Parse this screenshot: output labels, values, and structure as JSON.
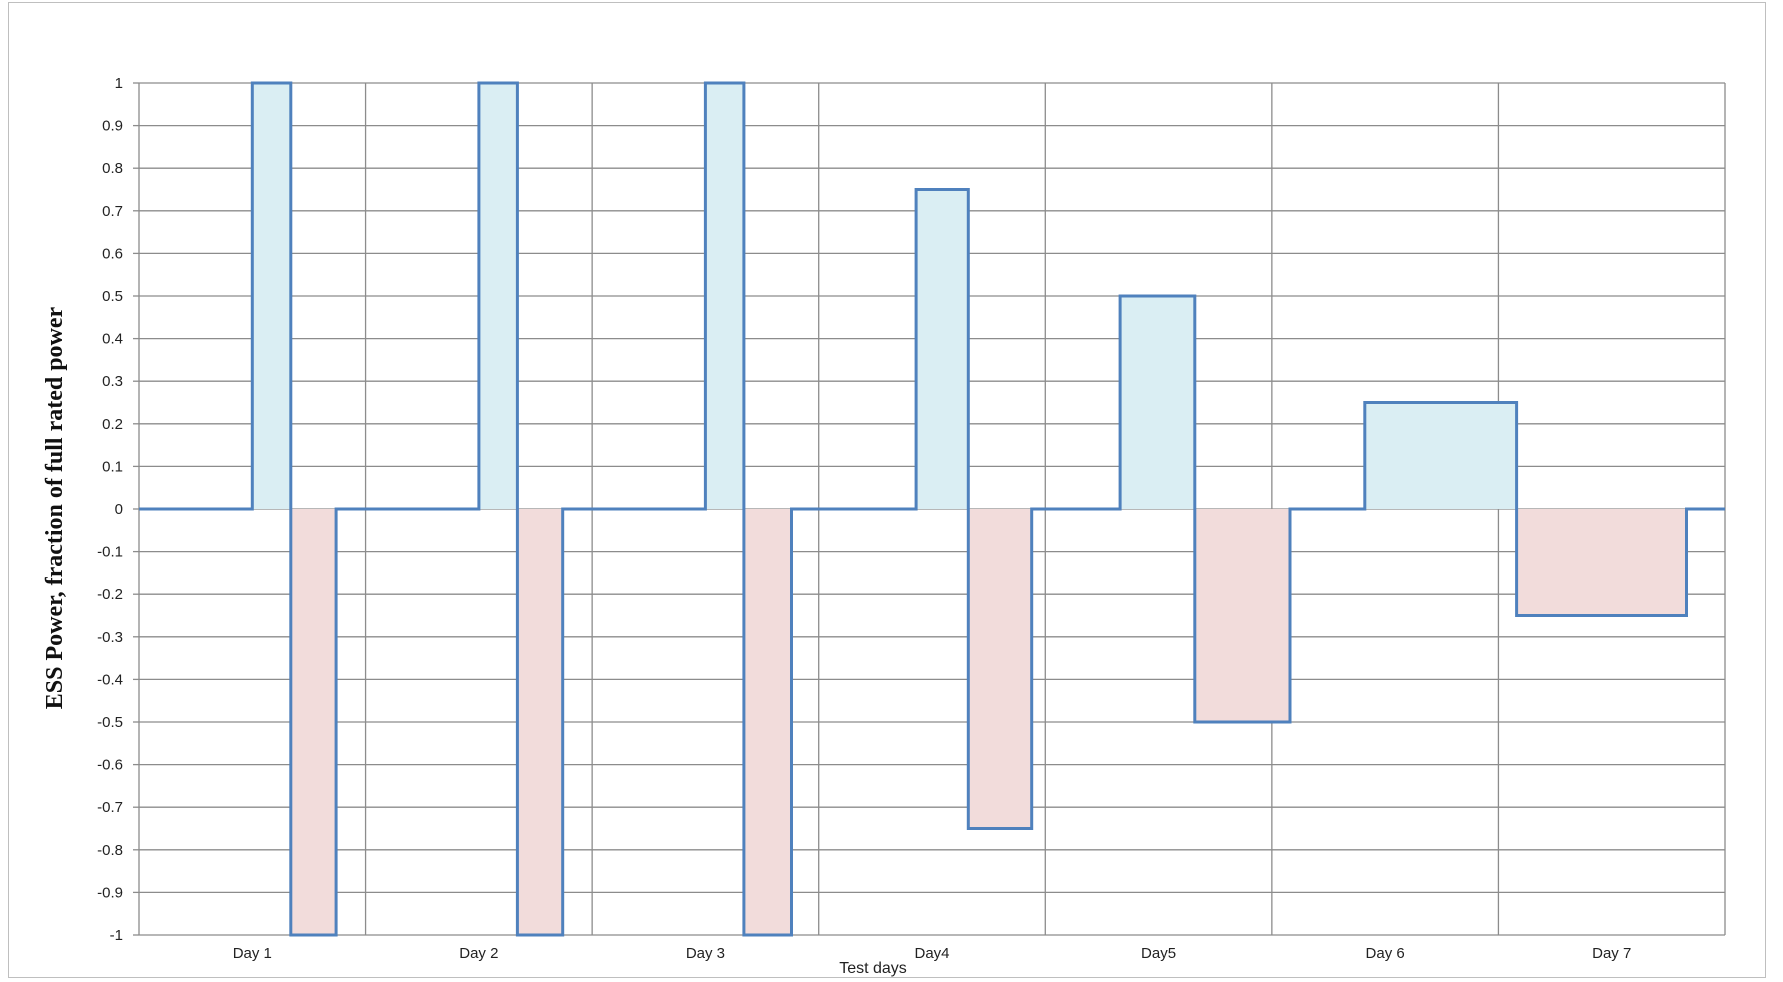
{
  "chart_data": {
    "type": "area",
    "title": "",
    "xlabel": "Test days",
    "ylabel": "ESS Power, fraction of full rated power",
    "ylim": [
      -1,
      1
    ],
    "yticks": [
      1,
      0.9,
      0.8,
      0.7,
      0.6,
      0.5,
      0.4,
      0.3,
      0.2,
      0.1,
      0,
      -0.1,
      -0.2,
      -0.3,
      -0.4,
      -0.5,
      -0.6,
      -0.7,
      -0.8,
      -0.9,
      -1
    ],
    "ytick_labels": [
      "1",
      "0.9",
      "0.8",
      "0.7",
      "0.6",
      "0.5",
      "0.4",
      "0.3",
      "0.2",
      "0.1",
      "0",
      "-0.1",
      "-0.2",
      "-0.3",
      "-0.4",
      "-0.5",
      "-0.6",
      "-0.7",
      "-0.8",
      "-0.9",
      "-1"
    ],
    "xlim": [
      0,
      7
    ],
    "categories": [
      "Day 1",
      "Day 2",
      "Day 3",
      "Day4",
      "Day5",
      "Day 6",
      "Day 7"
    ],
    "grid": true,
    "colors": {
      "line": "#4f81bd",
      "discharge_fill": "#daeef3",
      "charge_fill": "#f2dcdb",
      "grid": "#8c8c8c"
    },
    "profile": {
      "x": [
        0,
        0.5,
        0.5,
        0.67,
        0.67,
        0.87,
        0.87,
        1.5,
        1.5,
        1.67,
        1.67,
        1.87,
        1.87,
        2.5,
        2.5,
        2.67,
        2.67,
        2.88,
        2.88,
        3.43,
        3.43,
        3.66,
        3.66,
        3.94,
        3.94,
        4.33,
        4.33,
        4.66,
        4.66,
        5.08,
        5.08,
        5.41,
        5.41,
        6.08,
        6.08,
        6.83,
        6.83,
        7
      ],
      "y": [
        0,
        0,
        1,
        1,
        -1,
        -1,
        0,
        0,
        1,
        1,
        -1,
        -1,
        0,
        0,
        1,
        1,
        -1,
        -1,
        0,
        0,
        0.75,
        0.75,
        -0.75,
        -0.75,
        0,
        0,
        0.5,
        0.5,
        -0.5,
        -0.5,
        0,
        0,
        0.25,
        0.25,
        -0.25,
        -0.25,
        0,
        0
      ]
    }
  }
}
